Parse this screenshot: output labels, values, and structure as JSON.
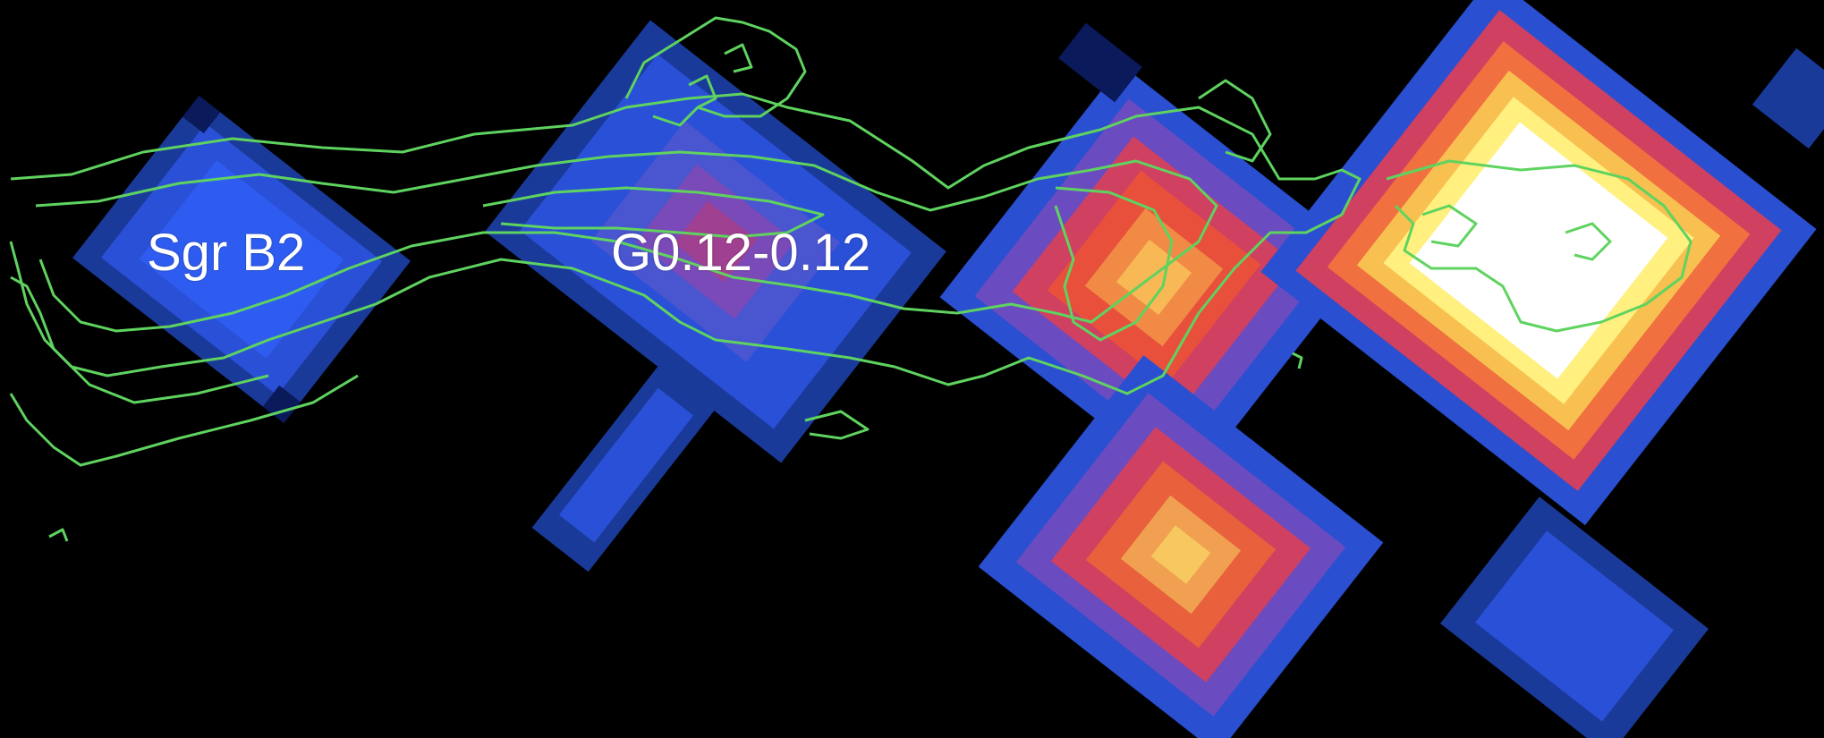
{
  "labels": {
    "sgr_b2": "Sgr B2",
    "g0_12": "G0.12-0.12"
  },
  "colors": {
    "background": "#000000",
    "contour": "#5fd35f",
    "label_text": "#ffffff",
    "colormap": [
      "#0a1a5a",
      "#1a3a9a",
      "#2a55e0",
      "#7050c8",
      "#c03a70",
      "#e84a3a",
      "#f08040",
      "#f8c050",
      "#fff080",
      "#ffffff"
    ]
  }
}
